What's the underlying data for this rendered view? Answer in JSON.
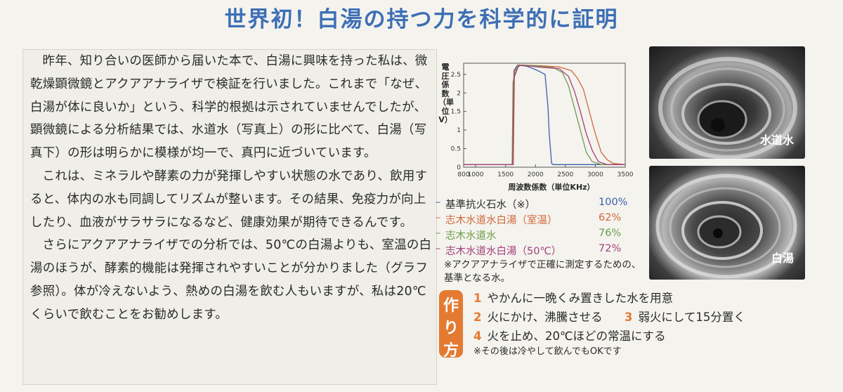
{
  "title": "世界初！白湯の持つ力を科学的に証明",
  "article": {
    "paragraphs": [
      "昨年、知り合いの医師から届いた本で、白湯に興味を持った私は、微乾燥顕微鏡とアクアアナライザで検証を行いました。これまで「なぜ、白湯が体に良いか」という、科学的根拠は示されていませんでしたが、顕微鏡による分析結果では、水道水（写真上）の形に比べて、白湯（写真下）の形は明らかに模様が均一で、真円に近づいています。",
      "これは、ミネラルや酵素の力が発揮しやすい状態の水であり、飲用すると、体内の水も同調してリズムが整います。その結果、免疫力が向上したり、血液がサラサラになるなど、健康効果が期待できるんです。",
      "さらにアクアアナライザでの分析では、50℃の白湯よりも、室温の白湯のほうが、酵素的機能は発揮されやすいことが分かりました（グラフ参照）。体が冷えないよう、熱めの白湯を飲む人もいますが、私は20℃くらいで飲むことをお勧めします。"
    ]
  },
  "chart_data": {
    "type": "line",
    "ylabel": "電圧係数（単位V）",
    "xlabel": "周波数係数（単位KHz）",
    "xlim": [
      800,
      3500
    ],
    "ylim": [
      0,
      2.8
    ],
    "x_ticks": [
      "800",
      "1000",
      "1500",
      "2000",
      "2500",
      "3000",
      "3500"
    ],
    "y_ticks": [
      "0",
      "0.5",
      "1",
      "1.5",
      "2",
      "2.5"
    ],
    "series": [
      {
        "name": "基準抗火石水（※）",
        "percent": "100%",
        "color": "#3b5fa8",
        "points": [
          [
            800,
            0.07
          ],
          [
            1620,
            0.07
          ],
          [
            1640,
            2.6
          ],
          [
            1700,
            2.75
          ],
          [
            1850,
            2.72
          ],
          [
            2000,
            2.63
          ],
          [
            2100,
            2.55
          ],
          [
            2160,
            2.5
          ],
          [
            2185,
            2.05
          ],
          [
            2210,
            1.6
          ],
          [
            2230,
            0.9
          ],
          [
            2250,
            0.5
          ],
          [
            2270,
            0.1
          ],
          [
            2300,
            0.07
          ],
          [
            3500,
            0.07
          ]
        ]
      },
      {
        "name": "志木水道水白湯（室温）",
        "percent": "62%",
        "color": "#d1683d",
        "points": [
          [
            800,
            0.07
          ],
          [
            1630,
            0.07
          ],
          [
            1650,
            2.6
          ],
          [
            1750,
            2.75
          ],
          [
            2100,
            2.73
          ],
          [
            2400,
            2.7
          ],
          [
            2600,
            2.6
          ],
          [
            2700,
            2.4
          ],
          [
            2800,
            2.1
          ],
          [
            2900,
            1.5
          ],
          [
            3000,
            0.9
          ],
          [
            3100,
            0.4
          ],
          [
            3200,
            0.2
          ],
          [
            3300,
            0.1
          ],
          [
            3500,
            0.07
          ]
        ]
      },
      {
        "name": "志木水道水",
        "percent": "76%",
        "color": "#6e9e4a",
        "points": [
          [
            800,
            0.07
          ],
          [
            1610,
            0.07
          ],
          [
            1625,
            2.3
          ],
          [
            1700,
            2.75
          ],
          [
            2000,
            2.73
          ],
          [
            2300,
            2.68
          ],
          [
            2450,
            2.55
          ],
          [
            2550,
            2.2
          ],
          [
            2650,
            1.6
          ],
          [
            2750,
            1.0
          ],
          [
            2850,
            0.4
          ],
          [
            2950,
            0.15
          ],
          [
            3100,
            0.07
          ],
          [
            3500,
            0.07
          ]
        ]
      },
      {
        "name": "志木水道水白湯（50℃）",
        "percent": "72%",
        "color": "#a3417a",
        "points": [
          [
            800,
            0.07
          ],
          [
            1620,
            0.07
          ],
          [
            1640,
            2.4
          ],
          [
            1720,
            2.75
          ],
          [
            2050,
            2.7
          ],
          [
            2400,
            2.65
          ],
          [
            2550,
            2.45
          ],
          [
            2650,
            2.05
          ],
          [
            2750,
            1.5
          ],
          [
            2850,
            0.9
          ],
          [
            2950,
            0.45
          ],
          [
            3050,
            0.15
          ],
          [
            3200,
            0.07
          ],
          [
            3500,
            0.07
          ]
        ]
      }
    ]
  },
  "legend_note": "※アクアアナライザで正確に測定するための、基準となる水。",
  "photos": {
    "top_caption": "水道水",
    "bottom_caption": "白湯"
  },
  "recipe": {
    "badge": [
      "作",
      "り",
      "方"
    ],
    "steps": [
      {
        "num": "1",
        "text": "やかんに一晩くみ置きした水を用意"
      },
      {
        "num": "2",
        "text": "火にかけ、沸騰させる"
      },
      {
        "num": "3",
        "text": "弱火にして15分置く"
      },
      {
        "num": "4",
        "text": "火を止め、20℃ほどの常温にする"
      }
    ],
    "footnote": "※その後は冷やして飲んでもOKです"
  },
  "colors": {
    "title": "#3d6fb5",
    "accent": "#e47a31"
  }
}
